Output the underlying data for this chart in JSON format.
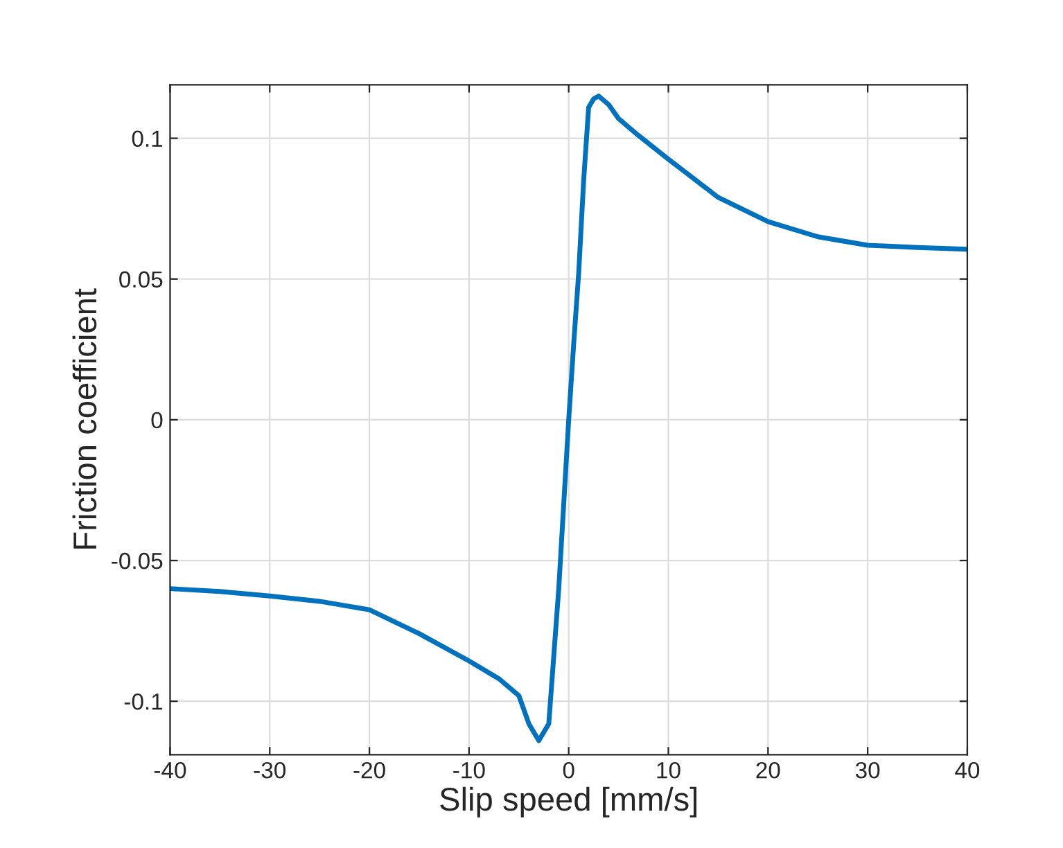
{
  "chart_data": {
    "type": "line",
    "xlabel": "Slip speed [mm/s]",
    "ylabel": "Friction coefficient",
    "xlim": [
      -40,
      40
    ],
    "ylim": [
      -0.119,
      0.119
    ],
    "xticks": [
      -40,
      -30,
      -20,
      -10,
      0,
      10,
      20,
      30,
      40
    ],
    "yticks": [
      -0.1,
      -0.05,
      0,
      0.05,
      0.1
    ],
    "grid": true,
    "line_style": "solid",
    "marker": "none",
    "series": [
      {
        "color": "#0072bd",
        "x": [
          -40,
          -35,
          -30,
          -25,
          -20,
          -15,
          -10,
          -7,
          -5,
          -4,
          -3,
          -2,
          -1,
          -0.5,
          0,
          0.5,
          1,
          1.5,
          2,
          2.5,
          3,
          4,
          5,
          7,
          10,
          15,
          20,
          25,
          30,
          35,
          40
        ],
        "values": [
          -0.06,
          -0.061,
          -0.0626,
          -0.0645,
          -0.0675,
          -0.076,
          -0.0857,
          -0.092,
          -0.098,
          -0.108,
          -0.114,
          -0.108,
          -0.06,
          -0.03,
          0,
          0.027,
          0.052,
          0.085,
          0.111,
          0.114,
          0.115,
          0.112,
          0.107,
          0.101,
          0.0926,
          0.079,
          0.0704,
          0.065,
          0.062,
          0.0612,
          0.0606
        ]
      }
    ]
  }
}
